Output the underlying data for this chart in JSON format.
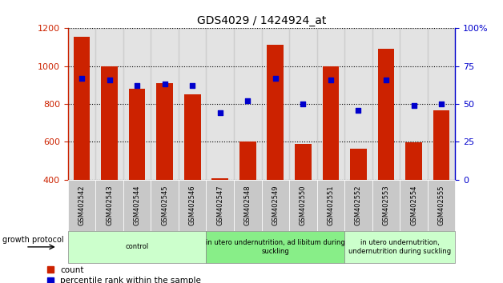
{
  "title": "GDS4029 / 1424924_at",
  "samples": [
    "GSM402542",
    "GSM402543",
    "GSM402544",
    "GSM402545",
    "GSM402546",
    "GSM402547",
    "GSM402548",
    "GSM402549",
    "GSM402550",
    "GSM402551",
    "GSM402552",
    "GSM402553",
    "GSM402554",
    "GSM402555"
  ],
  "counts": [
    1155,
    1000,
    882,
    910,
    852,
    408,
    600,
    1115,
    590,
    1000,
    563,
    1090,
    598,
    767
  ],
  "percentiles": [
    67,
    66,
    62,
    63,
    62,
    44,
    52,
    67,
    50,
    66,
    46,
    66,
    49,
    50
  ],
  "ylim_left": [
    400,
    1200
  ],
  "ylim_right": [
    0,
    100
  ],
  "yticks_left": [
    400,
    600,
    800,
    1000,
    1200
  ],
  "yticks_right": [
    0,
    25,
    50,
    75,
    100
  ],
  "ytick_right_labels": [
    "0",
    "25",
    "50",
    "75",
    "100%"
  ],
  "bar_color": "#cc2200",
  "dot_color": "#0000cc",
  "groups": [
    {
      "label": "control",
      "start": 0,
      "end": 5,
      "color": "#ccffcc"
    },
    {
      "label": "in utero undernutrition, ad libitum during\nsuckling",
      "start": 5,
      "end": 10,
      "color": "#88ee88"
    },
    {
      "label": "in utero undernutrition,\nundernutrition during suckling",
      "start": 10,
      "end": 14,
      "color": "#ccffcc"
    }
  ],
  "growth_protocol_label": "growth protocol",
  "legend_count": "count",
  "legend_percentile": "percentile rank within the sample",
  "bar_width": 0.6,
  "col_bg_color": "#c8c8c8"
}
